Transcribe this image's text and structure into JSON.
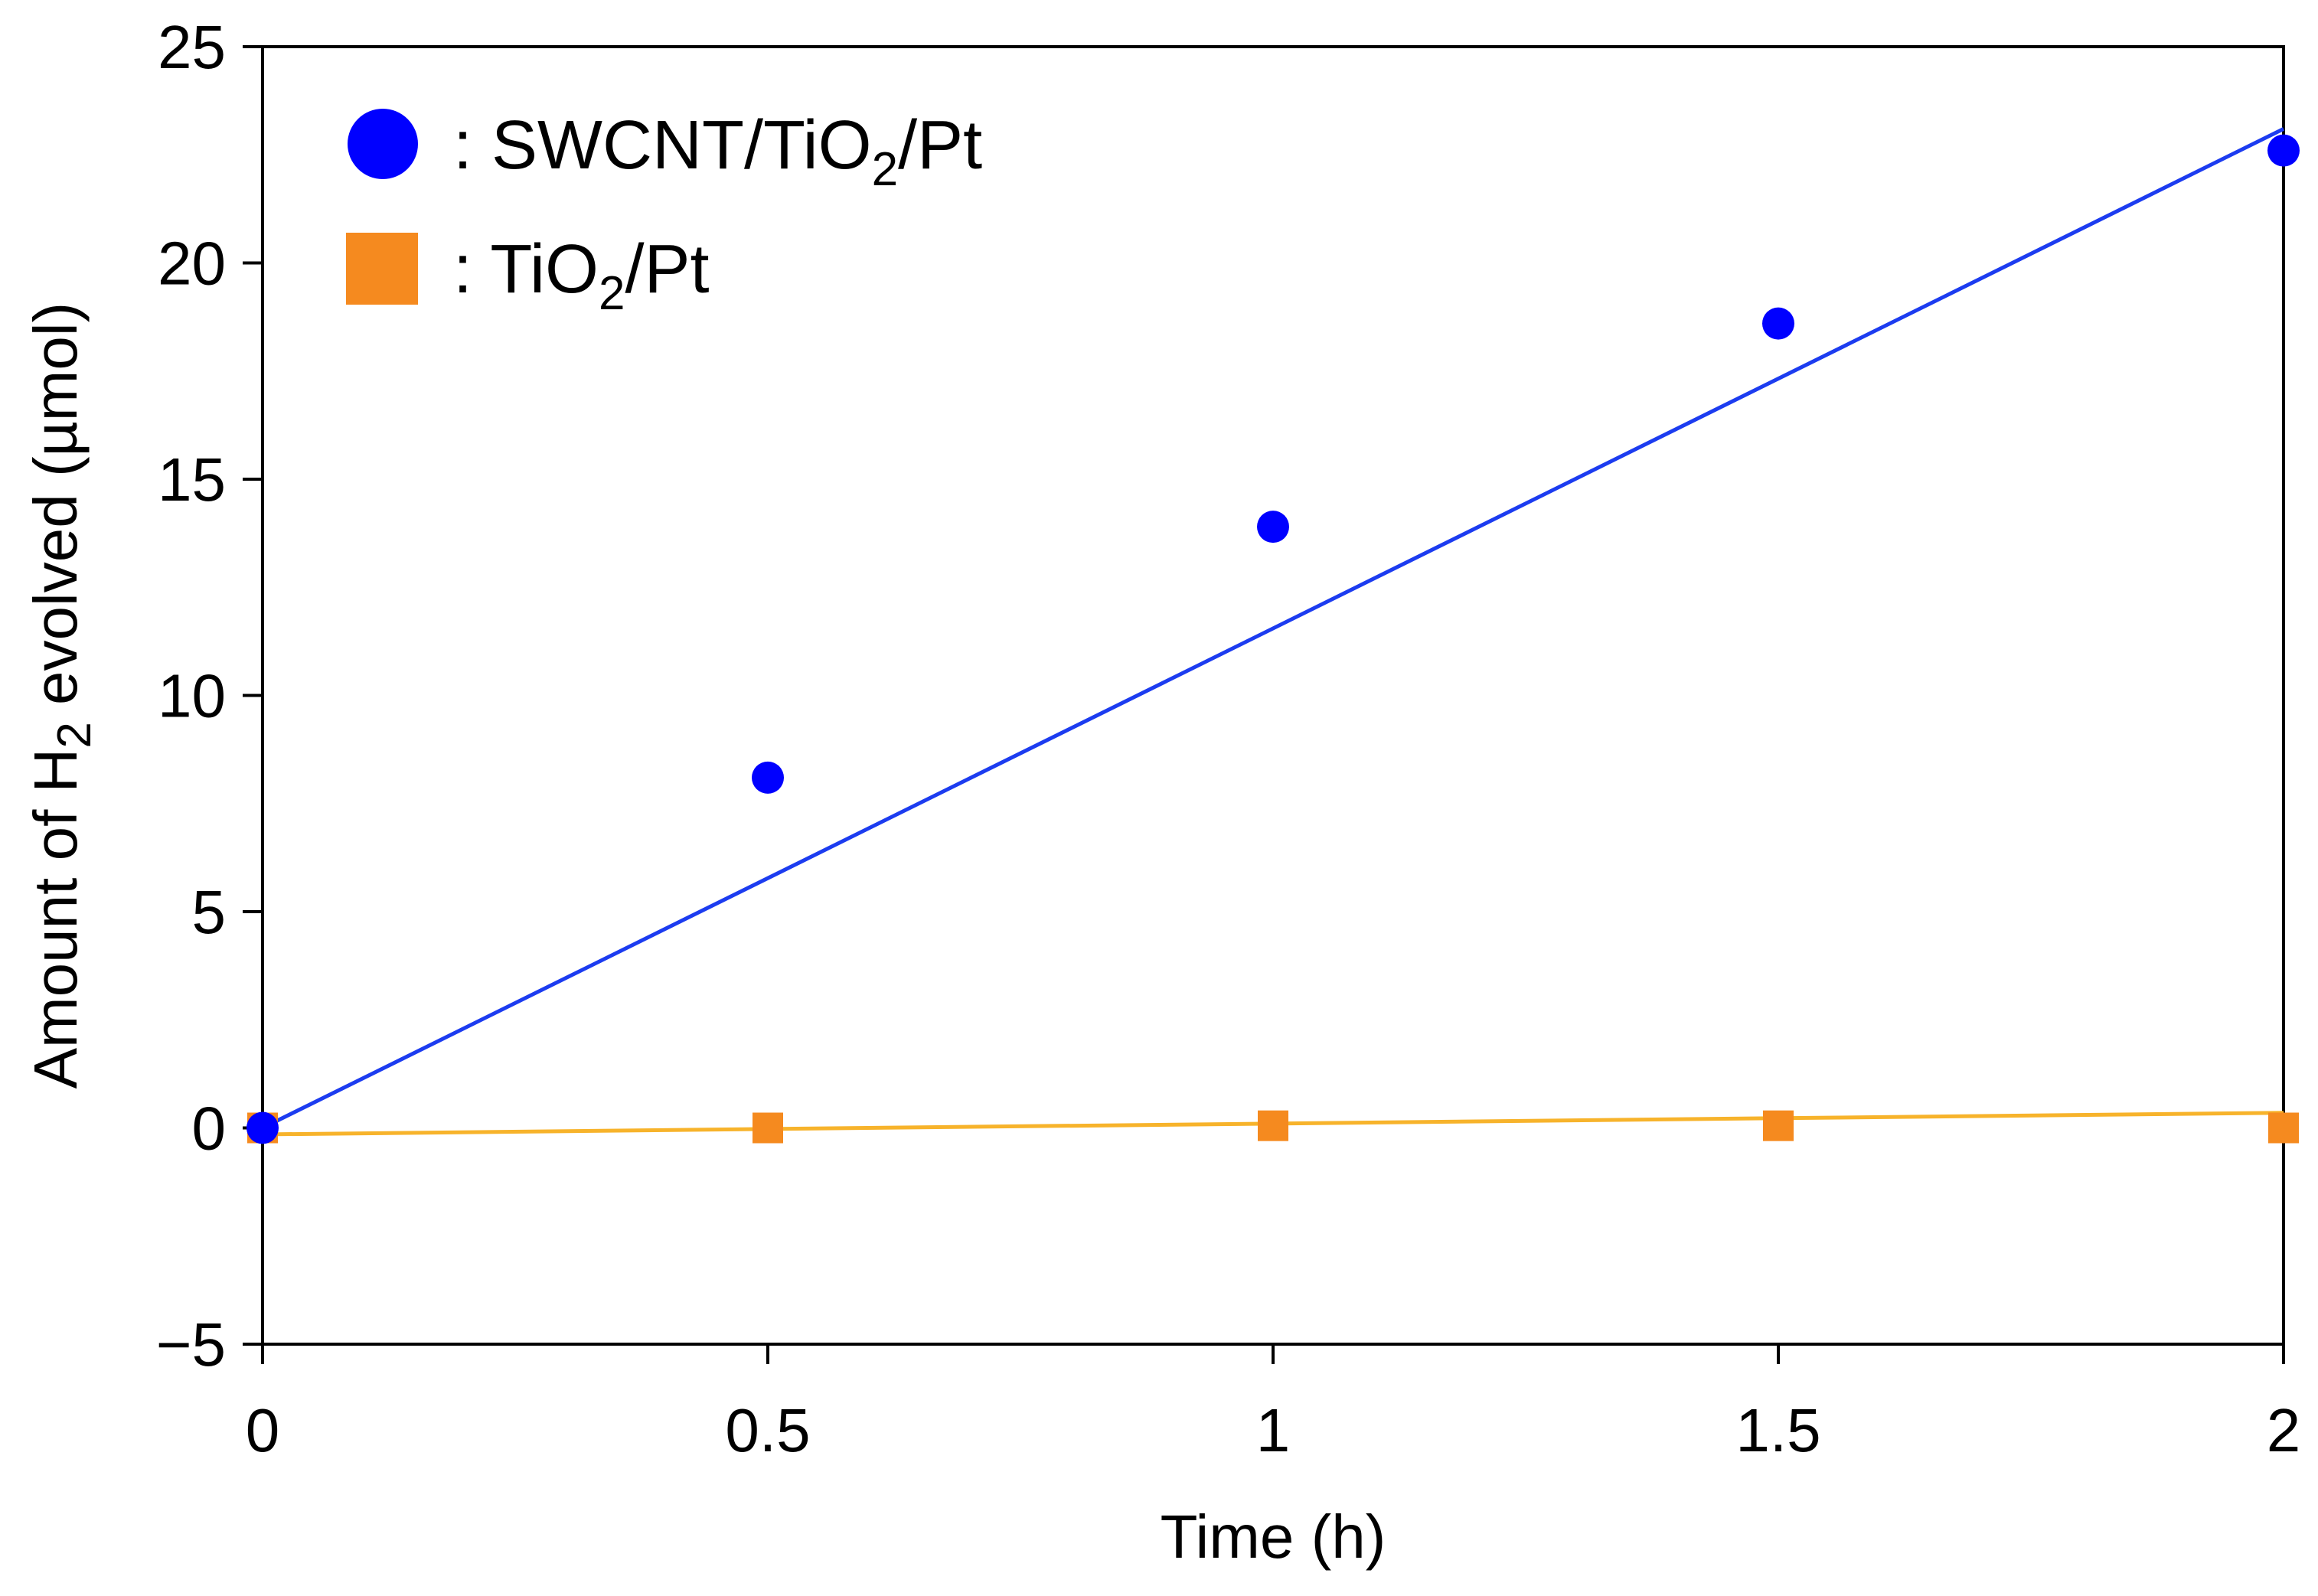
{
  "chart_data": {
    "type": "scatter",
    "title": "",
    "xlabel": "Time (h)",
    "ylabel_parts": {
      "before": "Amount of H",
      "subscript": "2",
      "after": " evolved (µmol)"
    },
    "xlim": [
      0,
      2
    ],
    "ylim": [
      -5,
      25
    ],
    "xticks": [
      0,
      0.5,
      1,
      1.5,
      2
    ],
    "xtick_labels": [
      "0",
      "0.5",
      "1",
      "1.5",
      "2"
    ],
    "yticks": [
      -5,
      0,
      5,
      10,
      15,
      20,
      25
    ],
    "ytick_labels": [
      "−5",
      "0",
      "5",
      "10",
      "15",
      "20",
      "25"
    ],
    "grid": false,
    "legend_position": "top-left",
    "series": [
      {
        "name": "SWCNT/TiO2/Pt",
        "legend_label": {
          "prefix": ": SWCNT/TiO",
          "subscript": "2",
          "suffix": "/Pt"
        },
        "marker": "circle",
        "color": "#0000ff",
        "x": [
          0,
          0.5,
          1,
          1.5,
          2
        ],
        "y": [
          0,
          8.1,
          13.9,
          18.6,
          22.6
        ],
        "trendline": {
          "color": "#1c3cf0",
          "x": [
            0,
            2
          ],
          "y": [
            0,
            23.1
          ]
        }
      },
      {
        "name": "TiO2/Pt",
        "legend_label": {
          "prefix": ": TiO",
          "subscript": "2",
          "suffix": "/Pt"
        },
        "marker": "square",
        "color": "#f58a1f",
        "x": [
          0,
          0.5,
          1,
          1.5,
          2
        ],
        "y": [
          0,
          0,
          0.05,
          0.05,
          0
        ],
        "trendline": {
          "color": "#f7b32b",
          "x": [
            0,
            2
          ],
          "y": [
            -0.15,
            0.35
          ]
        }
      }
    ]
  }
}
